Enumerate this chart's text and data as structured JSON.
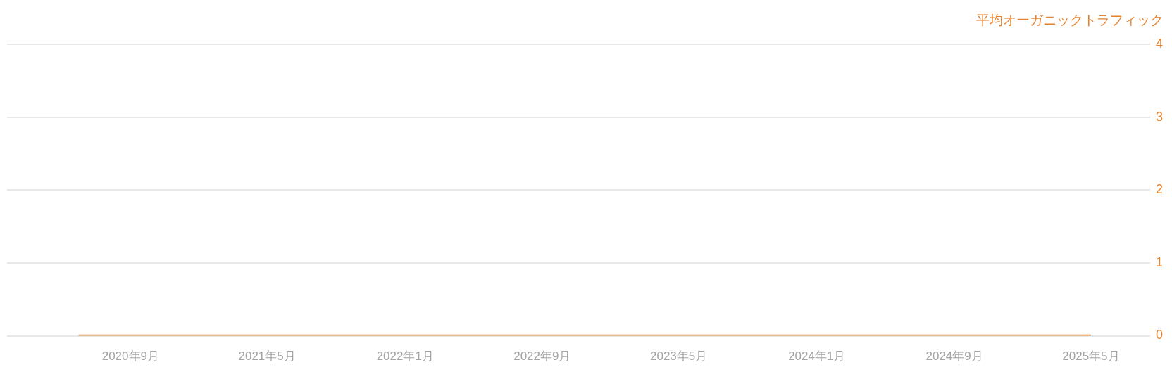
{
  "chart_data": {
    "type": "line",
    "ylabel": "平均オーガニックトラフィック",
    "xlim": [
      "2020-01-26",
      "2025-08-14"
    ],
    "xticks": [
      {
        "value": "2020-09",
        "label": "2020年9月"
      },
      {
        "value": "2021-05",
        "label": "2021年5月"
      },
      {
        "value": "2022-01",
        "label": "2022年1月"
      },
      {
        "value": "2022-09",
        "label": "2022年9月"
      },
      {
        "value": "2023-05",
        "label": "2023年5月"
      },
      {
        "value": "2024-01",
        "label": "2024年1月"
      },
      {
        "value": "2024-09",
        "label": "2024年9月"
      },
      {
        "value": "2025-05",
        "label": "2025年5月"
      }
    ],
    "ylim": [
      0,
      4
    ],
    "yticks": [
      0,
      1,
      2,
      3,
      4
    ],
    "grid": "y",
    "legend": false,
    "marker": "none",
    "line_style": "solid",
    "series": [
      {
        "color": "#e5822c",
        "x": [
          "2020-06",
          "2020-07",
          "2020-08",
          "2020-09",
          "2020-10",
          "2020-11",
          "2020-12",
          "2021-01",
          "2021-02",
          "2021-03",
          "2021-04",
          "2021-05",
          "2021-06",
          "2021-07",
          "2021-08",
          "2021-09",
          "2021-10",
          "2021-11",
          "2021-12",
          "2022-01",
          "2022-02",
          "2022-03",
          "2022-04",
          "2022-05",
          "2022-06",
          "2022-07",
          "2022-08",
          "2022-09",
          "2022-10",
          "2022-11",
          "2022-12",
          "2023-01",
          "2023-02",
          "2023-03",
          "2023-04",
          "2023-05",
          "2023-06",
          "2023-07",
          "2023-08",
          "2023-09",
          "2023-10",
          "2023-11",
          "2023-12",
          "2024-01",
          "2024-02",
          "2024-03",
          "2024-04",
          "2024-05",
          "2024-06",
          "2024-07",
          "2024-08",
          "2024-09",
          "2024-10",
          "2024-11",
          "2024-12",
          "2025-01",
          "2025-02",
          "2025-03",
          "2025-04",
          "2025-05"
        ],
        "values": [
          0,
          0,
          0,
          0,
          0,
          0,
          0,
          0,
          0,
          0,
          0,
          0,
          0,
          0,
          0,
          0,
          0,
          0,
          0,
          0,
          0,
          0,
          0,
          0,
          0,
          0,
          0,
          0,
          0,
          0,
          0,
          0,
          0,
          0,
          0,
          0,
          0,
          0,
          0,
          0,
          0,
          0,
          0,
          0,
          0,
          0,
          0,
          0,
          0,
          0,
          0,
          0,
          0,
          0,
          0,
          0,
          0,
          0,
          0,
          0
        ]
      }
    ]
  }
}
